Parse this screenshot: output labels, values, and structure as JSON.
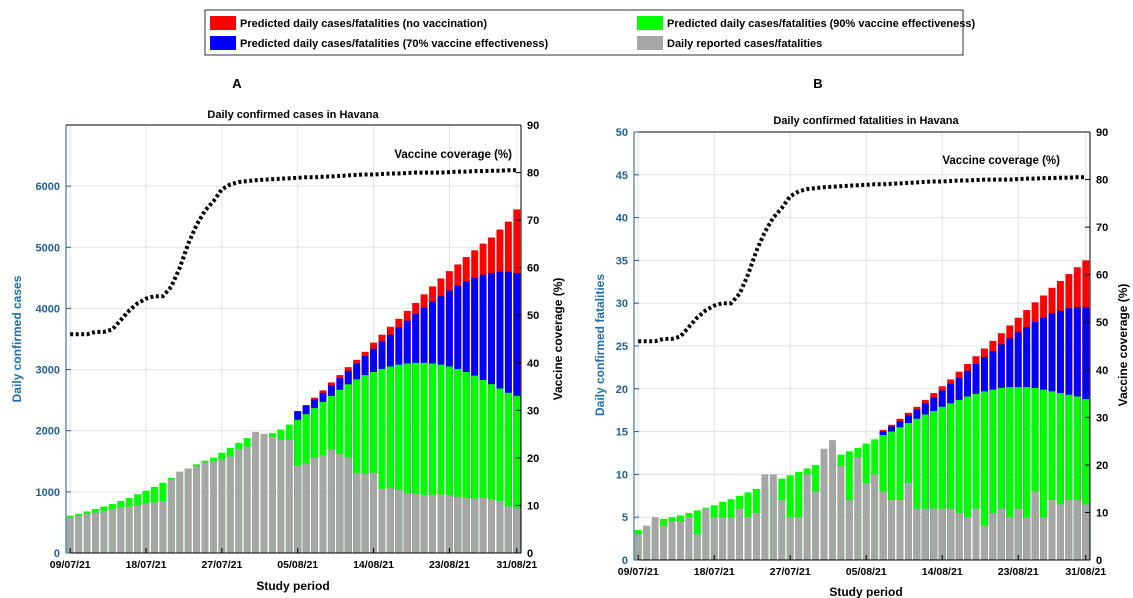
{
  "colors": {
    "no_vaccination": "#ff0000",
    "vacc70": "#0000ff",
    "vacc90": "#00ff00",
    "reported": "#a6a6a6",
    "left_axis": "#1f5f99",
    "coverage_line": "#000000"
  },
  "legend": {
    "items": [
      {
        "label": "Predicted daily cases/fatalities (no vaccination)",
        "color": "#ff0000"
      },
      {
        "label": "Predicted daily cases/fatalities (90% vaccine effectiveness)",
        "color": "#00ff00"
      },
      {
        "label": "Predicted daily cases/fatalities (70% vaccine effectiveness)",
        "color": "#0000ff"
      },
      {
        "label": "Daily reported cases/fatalities",
        "color": "#a6a6a6"
      }
    ]
  },
  "chart_data": [
    {
      "panel": "A",
      "type": "bar",
      "stacked": "overlaid",
      "title": "Daily confirmed cases in  Havana",
      "xlabel": "Study period",
      "ylabel": "Daily confirmed cases",
      "y2label": "Vaccine coverage (%)",
      "annotation": "Vaccine coverage (%)",
      "ylim": [
        0,
        7000
      ],
      "yticks": [
        0,
        1000,
        2000,
        3000,
        4000,
        5000,
        6000
      ],
      "y2lim": [
        0,
        90
      ],
      "y2ticks": [
        0,
        10,
        20,
        30,
        40,
        50,
        60,
        70,
        80,
        90
      ],
      "xtick_labels": [
        "09/07/21",
        "18/07/21",
        "27/07/21",
        "05/08/21",
        "14/08/21",
        "23/08/21",
        "31/08/21"
      ],
      "xtick_days": [
        0,
        9,
        18,
        27,
        36,
        45,
        53
      ],
      "n_days": 54,
      "series": [
        {
          "name": "Predicted daily cases/fatalities (no vaccination)",
          "key": "no_vaccination",
          "values": [
            null,
            null,
            null,
            null,
            null,
            null,
            null,
            null,
            null,
            null,
            null,
            null,
            null,
            null,
            null,
            null,
            null,
            null,
            null,
            null,
            null,
            null,
            null,
            null,
            null,
            null,
            null,
            2320,
            2420,
            2540,
            2660,
            2790,
            2910,
            3040,
            3160,
            3290,
            3440,
            3570,
            3700,
            3830,
            3960,
            4090,
            4230,
            4360,
            4490,
            4610,
            4720,
            4840,
            4950,
            5060,
            5160,
            5290,
            5420,
            5620
          ]
        },
        {
          "name": "Predicted daily cases/fatalities (70% vaccine effectiveness)",
          "key": "vacc70",
          "values": [
            null,
            null,
            null,
            null,
            null,
            null,
            null,
            null,
            null,
            null,
            null,
            null,
            null,
            null,
            null,
            null,
            null,
            null,
            null,
            null,
            null,
            null,
            null,
            null,
            null,
            null,
            null,
            2320,
            2410,
            2510,
            2620,
            2740,
            2860,
            2980,
            3100,
            3220,
            3340,
            3460,
            3570,
            3690,
            3800,
            3910,
            4010,
            4110,
            4200,
            4290,
            4370,
            4440,
            4500,
            4550,
            4580,
            4600,
            4600,
            4580
          ]
        },
        {
          "name": "Predicted daily cases/fatalities (90% vaccine effectiveness)",
          "key": "vacc90",
          "values": [
            610,
            640,
            680,
            720,
            760,
            800,
            850,
            900,
            960,
            1020,
            1080,
            1150,
            1230,
            1310,
            1380,
            1450,
            1510,
            1560,
            1640,
            1720,
            1800,
            1880,
            1900,
            1920,
            1960,
            2020,
            2100,
            2180,
            2270,
            2370,
            2470,
            2570,
            2670,
            2760,
            2840,
            2910,
            2960,
            3010,
            3050,
            3080,
            3100,
            3110,
            3110,
            3100,
            3080,
            3050,
            3010,
            2960,
            2900,
            2830,
            2760,
            2690,
            2620,
            2570
          ]
        },
        {
          "name": "Daily reported cases/fatalities",
          "key": "reported",
          "values": [
            580,
            610,
            640,
            660,
            690,
            720,
            750,
            760,
            780,
            810,
            830,
            850,
            1200,
            1330,
            1380,
            1420,
            1480,
            1500,
            1530,
            1580,
            1700,
            1740,
            1980,
            1950,
            1900,
            1850,
            1850,
            1430,
            1460,
            1560,
            1600,
            1700,
            1620,
            1560,
            1310,
            1290,
            1310,
            1050,
            1060,
            1030,
            980,
            970,
            950,
            950,
            960,
            940,
            920,
            900,
            890,
            900,
            880,
            850,
            760,
            730
          ]
        },
        {
          "name": "Vaccine coverage (%)",
          "key": "coverage",
          "axis": "right",
          "type": "line",
          "values": [
            46,
            46,
            46,
            46.5,
            46.5,
            47,
            49,
            51,
            52.5,
            53.5,
            54,
            54,
            56,
            60,
            65,
            69,
            72,
            74,
            76.5,
            77.5,
            78,
            78.2,
            78.4,
            78.5,
            78.6,
            78.7,
            78.8,
            78.9,
            79,
            79,
            79.1,
            79.2,
            79.3,
            79.4,
            79.5,
            79.6,
            79.6,
            79.7,
            79.8,
            79.8,
            79.9,
            80,
            80,
            80,
            80,
            80.1,
            80.2,
            80.2,
            80.3,
            80.3,
            80.4,
            80.4,
            80.5,
            80.5
          ]
        }
      ]
    },
    {
      "panel": "B",
      "type": "bar",
      "stacked": "overlaid",
      "title": "Daily confirmed fatalities in  Havana",
      "xlabel": "Study period",
      "ylabel": "Daily confirmed fatalities",
      "y2label": "Vaccine coverage (%)",
      "annotation": "Vaccine coverage (%)",
      "ylim": [
        0,
        50
      ],
      "yticks": [
        0,
        5,
        10,
        15,
        20,
        25,
        30,
        35,
        40,
        45,
        50
      ],
      "y2lim": [
        0,
        90
      ],
      "y2ticks": [
        0,
        10,
        20,
        30,
        40,
        50,
        60,
        70,
        80,
        90
      ],
      "xtick_labels": [
        "09/07/21",
        "18/07/21",
        "27/07/21",
        "05/08/21",
        "14/08/21",
        "23/08/21",
        "31/08/21"
      ],
      "xtick_days": [
        0,
        9,
        18,
        27,
        36,
        45,
        53
      ],
      "n_days": 54,
      "series": [
        {
          "name": "Predicted daily cases/fatalities (no vaccination)",
          "key": "no_vaccination",
          "values": [
            null,
            null,
            null,
            null,
            null,
            null,
            null,
            null,
            null,
            null,
            null,
            null,
            null,
            null,
            null,
            null,
            null,
            null,
            null,
            null,
            null,
            null,
            null,
            null,
            null,
            null,
            null,
            null,
            null,
            15.2,
            15.8,
            16.5,
            17.2,
            17.9,
            18.7,
            19.5,
            20.3,
            21.1,
            22,
            22.9,
            23.8,
            24.7,
            25.6,
            26.5,
            27.4,
            28.3,
            29.2,
            30.1,
            30.9,
            31.8,
            32.6,
            33.4,
            34.2,
            35
          ]
        },
        {
          "name": "Predicted daily cases/fatalities (70% vaccine effectiveness)",
          "key": "vacc70",
          "values": [
            null,
            null,
            null,
            null,
            null,
            null,
            null,
            null,
            null,
            null,
            null,
            null,
            null,
            null,
            null,
            null,
            null,
            null,
            null,
            null,
            null,
            null,
            null,
            null,
            null,
            null,
            null,
            null,
            null,
            15,
            15.6,
            16.2,
            16.9,
            17.6,
            18.3,
            19,
            19.8,
            20.6,
            21.3,
            22.1,
            22.9,
            23.7,
            24.4,
            25.2,
            25.9,
            26.6,
            27.2,
            27.8,
            28.3,
            28.8,
            29.1,
            29.4,
            29.5,
            29.5
          ]
        },
        {
          "name": "Predicted daily cases/fatalities (90% vaccine effectiveness)",
          "key": "vacc90",
          "values": [
            3.5,
            4,
            4.5,
            4.8,
            5,
            5.2,
            5.5,
            5.8,
            6.1,
            6.4,
            6.8,
            7.1,
            7.5,
            7.9,
            8.3,
            8.7,
            9.1,
            9.5,
            9.9,
            10.3,
            10.7,
            11.1,
            11.5,
            11.9,
            12.3,
            12.7,
            13.1,
            13.6,
            14.1,
            14.6,
            15,
            15.5,
            16,
            16.5,
            17,
            17.4,
            17.9,
            18.3,
            18.7,
            19.1,
            19.4,
            19.7,
            19.9,
            20.1,
            20.2,
            20.2,
            20.2,
            20.1,
            19.9,
            19.7,
            19.5,
            19.3,
            19.1,
            18.8
          ]
        },
        {
          "name": "Daily reported cases/fatalities",
          "key": "reported",
          "values": [
            3,
            4,
            5,
            4,
            4.5,
            4.5,
            5,
            3,
            6,
            5,
            5,
            5,
            6,
            5,
            5.5,
            10,
            10,
            7,
            5,
            5,
            10,
            8,
            13,
            14,
            11,
            7,
            12,
            9,
            10,
            8,
            7,
            7,
            9,
            6,
            6,
            6,
            6,
            6,
            5.5,
            5,
            6,
            4,
            5.5,
            6,
            5,
            6,
            5,
            8,
            5,
            7,
            6.5,
            7,
            7,
            6.5
          ]
        },
        {
          "name": "Vaccine coverage (%)",
          "key": "coverage",
          "axis": "right",
          "type": "line",
          "values": [
            46,
            46,
            46,
            46.5,
            46.5,
            47,
            49,
            51,
            52.5,
            53.5,
            54,
            54,
            56,
            60,
            65,
            69,
            72,
            74,
            76.5,
            77.5,
            78,
            78.2,
            78.4,
            78.5,
            78.6,
            78.7,
            78.8,
            78.9,
            79,
            79,
            79.1,
            79.2,
            79.3,
            79.4,
            79.5,
            79.6,
            79.6,
            79.7,
            79.8,
            79.8,
            79.9,
            80,
            80,
            80,
            80,
            80.1,
            80.2,
            80.2,
            80.3,
            80.3,
            80.4,
            80.4,
            80.5,
            80.5
          ]
        }
      ]
    }
  ]
}
